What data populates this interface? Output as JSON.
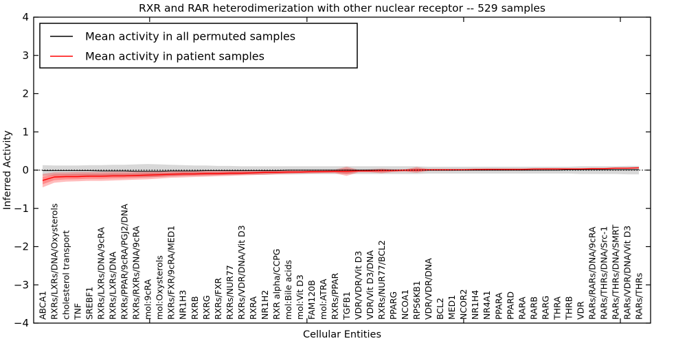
{
  "figure": {
    "background": "#ffffff"
  },
  "chart_data": {
    "type": "line",
    "title": "RXR and RAR heterodimerization with other nuclear receptor -- 529 samples",
    "xlabel": "Cellular Entities",
    "ylabel": "Inferred Activity",
    "ylim": [
      -4,
      4
    ],
    "yticks": [
      4,
      3,
      2,
      1,
      0,
      -1,
      -2,
      -3,
      -4
    ],
    "grid": false,
    "zero_line": true,
    "legend_position": "upper left",
    "legend": [
      {
        "label": "Mean activity in all permuted samples",
        "color": "#000000"
      },
      {
        "label": "Mean activity in patient samples",
        "color": "#ff0000"
      }
    ],
    "categories": [
      "ABCA1",
      "RXRs/LXRs/DNA/Oxysterols",
      "cholesterol transport",
      "TNF",
      "SREBF1",
      "RXRs/LXRs/DNA/9cRA",
      "RXRs/LXRs/DNA",
      "RXRs/PPAR/9cRA/PGJ2/DNA",
      "RXRs/RXRs/DNA/9cRA",
      "mol:9cRA",
      "mol:Oxysterols",
      "RXRs/FXR/9cRA/MED1",
      "NR1H3",
      "RXRB",
      "RXRG",
      "RXRs/FXR",
      "RXRs/NUR77",
      "RXRs/VDR/DNA/Vit D3",
      "RXRA",
      "NR1H2",
      "RXR alpha/CCPG",
      "mol:Bile acids",
      "mol:Vit D3",
      "FAM120B",
      "mol:ATRA",
      "RXRs/PPAR",
      "TGFB1",
      "VDR/VDR/Vit D3",
      "VDR/Vit D3/DNA",
      "RXRs/NUR77/BCL2",
      "PPARG",
      "NCOA1",
      "RPS6KB1",
      "VDR/VDR/DNA",
      "BCL2",
      "MED1",
      "NCOR2",
      "NR1H4",
      "NR4A1",
      "PPARA",
      "PPARD",
      "RARA",
      "RARB",
      "RARG",
      "THRA",
      "THRB",
      "VDR",
      "RARs/RARs/DNA/9cRA",
      "RARs/THRs/DNA/Src-1",
      "RARs/THRs/DNA/SMRT",
      "RARs/VDR/DNA/Vit D3",
      "RARs/THRs"
    ],
    "series": [
      {
        "name": "Mean activity in all permuted samples",
        "color": "#000000",
        "line_width": 1.0,
        "values": [
          -0.01,
          -0.01,
          -0.01,
          -0.01,
          -0.01,
          -0.02,
          -0.02,
          -0.02,
          -0.03,
          -0.03,
          -0.03,
          -0.02,
          -0.02,
          -0.02,
          -0.01,
          -0.01,
          -0.01,
          -0.01,
          -0.01,
          -0.01,
          -0.01,
          0,
          0,
          0,
          0,
          0,
          0,
          0,
          0,
          0,
          0,
          0,
          0,
          0,
          0,
          0,
          0,
          0,
          0,
          0,
          0,
          0,
          0,
          0,
          0,
          0.01,
          0.01,
          0.01,
          0.01,
          0.01,
          0.01,
          0.01
        ],
        "band": {
          "upper": [
            0.13,
            0.12,
            0.12,
            0.12,
            0.13,
            0.13,
            0.14,
            0.14,
            0.15,
            0.16,
            0.15,
            0.14,
            0.13,
            0.12,
            0.12,
            0.11,
            0.11,
            0.1,
            0.1,
            0.1,
            0.1,
            0.1,
            0.1,
            0.1,
            0.1,
            0.1,
            0.1,
            0.1,
            0.1,
            0.1,
            0.1,
            0.1,
            0.1,
            0.09,
            0.09,
            0.09,
            0.09,
            0.09,
            0.09,
            0.09,
            0.09,
            0.09,
            0.09,
            0.09,
            0.09,
            0.09,
            0.1,
            0.1,
            0.1,
            0.1,
            0.11,
            0.11
          ],
          "lower": [
            -0.15,
            -0.14,
            -0.14,
            -0.14,
            -0.15,
            -0.15,
            -0.16,
            -0.16,
            -0.17,
            -0.18,
            -0.17,
            -0.16,
            -0.15,
            -0.14,
            -0.14,
            -0.13,
            -0.13,
            -0.12,
            -0.12,
            -0.12,
            -0.11,
            -0.11,
            -0.11,
            -0.1,
            -0.1,
            -0.1,
            -0.1,
            -0.1,
            -0.1,
            -0.1,
            -0.1,
            -0.1,
            -0.1,
            -0.09,
            -0.09,
            -0.09,
            -0.09,
            -0.09,
            -0.09,
            -0.09,
            -0.09,
            -0.09,
            -0.09,
            -0.09,
            -0.09,
            -0.09,
            -0.1,
            -0.1,
            -0.1,
            -0.1,
            -0.11,
            -0.11
          ],
          "color": "#999999",
          "opacity": 0.38,
          "double_layer": false
        }
      },
      {
        "name": "Mean activity in patient samples",
        "color": "#ff0000",
        "line_width": 1.4,
        "values": [
          -0.27,
          -0.18,
          -0.17,
          -0.17,
          -0.16,
          -0.16,
          -0.15,
          -0.15,
          -0.14,
          -0.13,
          -0.12,
          -0.11,
          -0.1,
          -0.1,
          -0.09,
          -0.09,
          -0.08,
          -0.08,
          -0.07,
          -0.06,
          -0.06,
          -0.05,
          -0.05,
          -0.04,
          -0.04,
          -0.03,
          -0.03,
          -0.02,
          -0.02,
          -0.01,
          -0.01,
          0,
          0,
          0.01,
          0.01,
          0.01,
          0.01,
          0.02,
          0.02,
          0.02,
          0.02,
          0.02,
          0.03,
          0.03,
          0.03,
          0.03,
          0.03,
          0.04,
          0.04,
          0.05,
          0.05,
          0.06
        ],
        "band": {
          "upper": [
            -0.1,
            -0.06,
            -0.06,
            -0.05,
            -0.05,
            -0.05,
            -0.04,
            -0.04,
            -0.04,
            -0.03,
            -0.03,
            -0.03,
            -0.02,
            -0.02,
            -0.02,
            -0.02,
            -0.01,
            -0.01,
            -0.01,
            0,
            0,
            0,
            0,
            0,
            0.01,
            0.01,
            0.09,
            0.01,
            0.02,
            0.04,
            0.02,
            0.02,
            0.08,
            0.03,
            0.03,
            0.03,
            0.03,
            0.03,
            0.04,
            0.04,
            0.04,
            0.04,
            0.04,
            0.05,
            0.05,
            0.05,
            0.05,
            0.06,
            0.06,
            0.07,
            0.07,
            0.08
          ],
          "lower": [
            -0.45,
            -0.33,
            -0.3,
            -0.29,
            -0.28,
            -0.28,
            -0.27,
            -0.26,
            -0.25,
            -0.24,
            -0.22,
            -0.2,
            -0.19,
            -0.18,
            -0.17,
            -0.16,
            -0.15,
            -0.14,
            -0.13,
            -0.12,
            -0.11,
            -0.1,
            -0.09,
            -0.09,
            -0.08,
            -0.08,
            -0.15,
            -0.06,
            -0.06,
            -0.08,
            -0.05,
            -0.04,
            -0.07,
            -0.02,
            -0.02,
            -0.02,
            -0.01,
            -0.01,
            -0.01,
            0,
            0,
            0,
            0.01,
            0.01,
            0.01,
            0.01,
            0.01,
            0.02,
            0.02,
            0.03,
            0.03,
            0.04
          ],
          "color": "#ff0000",
          "opacity": 0.26,
          "double_layer": true
        }
      }
    ],
    "zero_line_style": {
      "color": "#000000",
      "dash": "1.5,2.4",
      "width": 1.2
    }
  }
}
